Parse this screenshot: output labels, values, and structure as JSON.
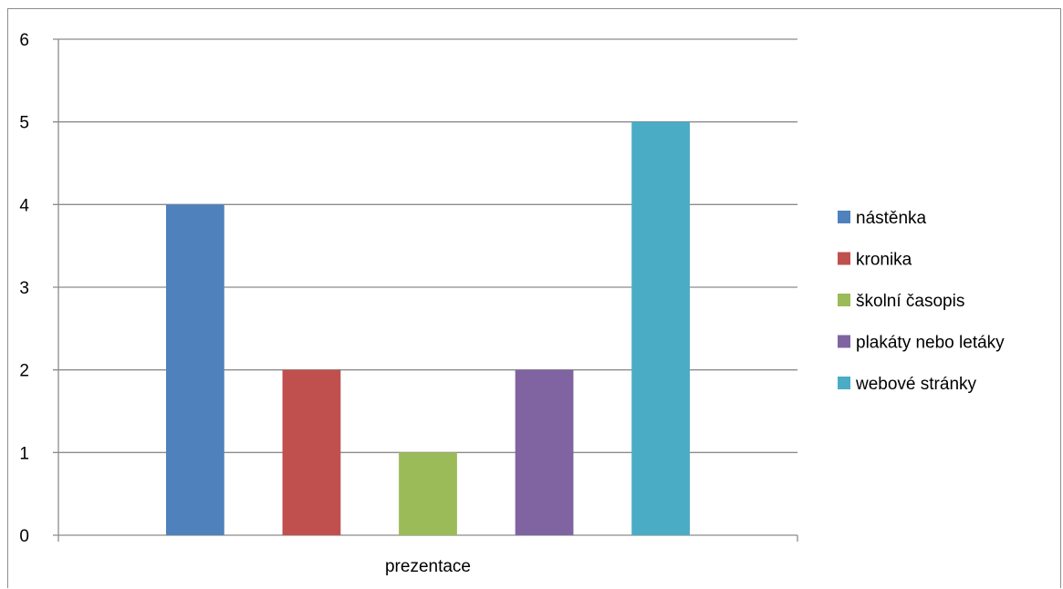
{
  "chart_data": {
    "type": "bar",
    "categories": [
      "prezentace"
    ],
    "series": [
      {
        "name": "nástěnka",
        "values": [
          4
        ],
        "color": "#4F81BD"
      },
      {
        "name": "kronika",
        "values": [
          2
        ],
        "color": "#C0504D"
      },
      {
        "name": "školní časopis",
        "values": [
          1
        ],
        "color": "#9BBB59"
      },
      {
        "name": "plakáty nebo letáky",
        "values": [
          2
        ],
        "color": "#8064A2"
      },
      {
        "name": "webové stránky",
        "values": [
          5
        ],
        "color": "#4BACC6"
      }
    ],
    "ylim": [
      0,
      6
    ],
    "yticks": [
      "0",
      "1",
      "2",
      "3",
      "4",
      "5",
      "6"
    ],
    "grid": true,
    "legend_position": "right",
    "gridline_color": "#8c8c8c"
  }
}
